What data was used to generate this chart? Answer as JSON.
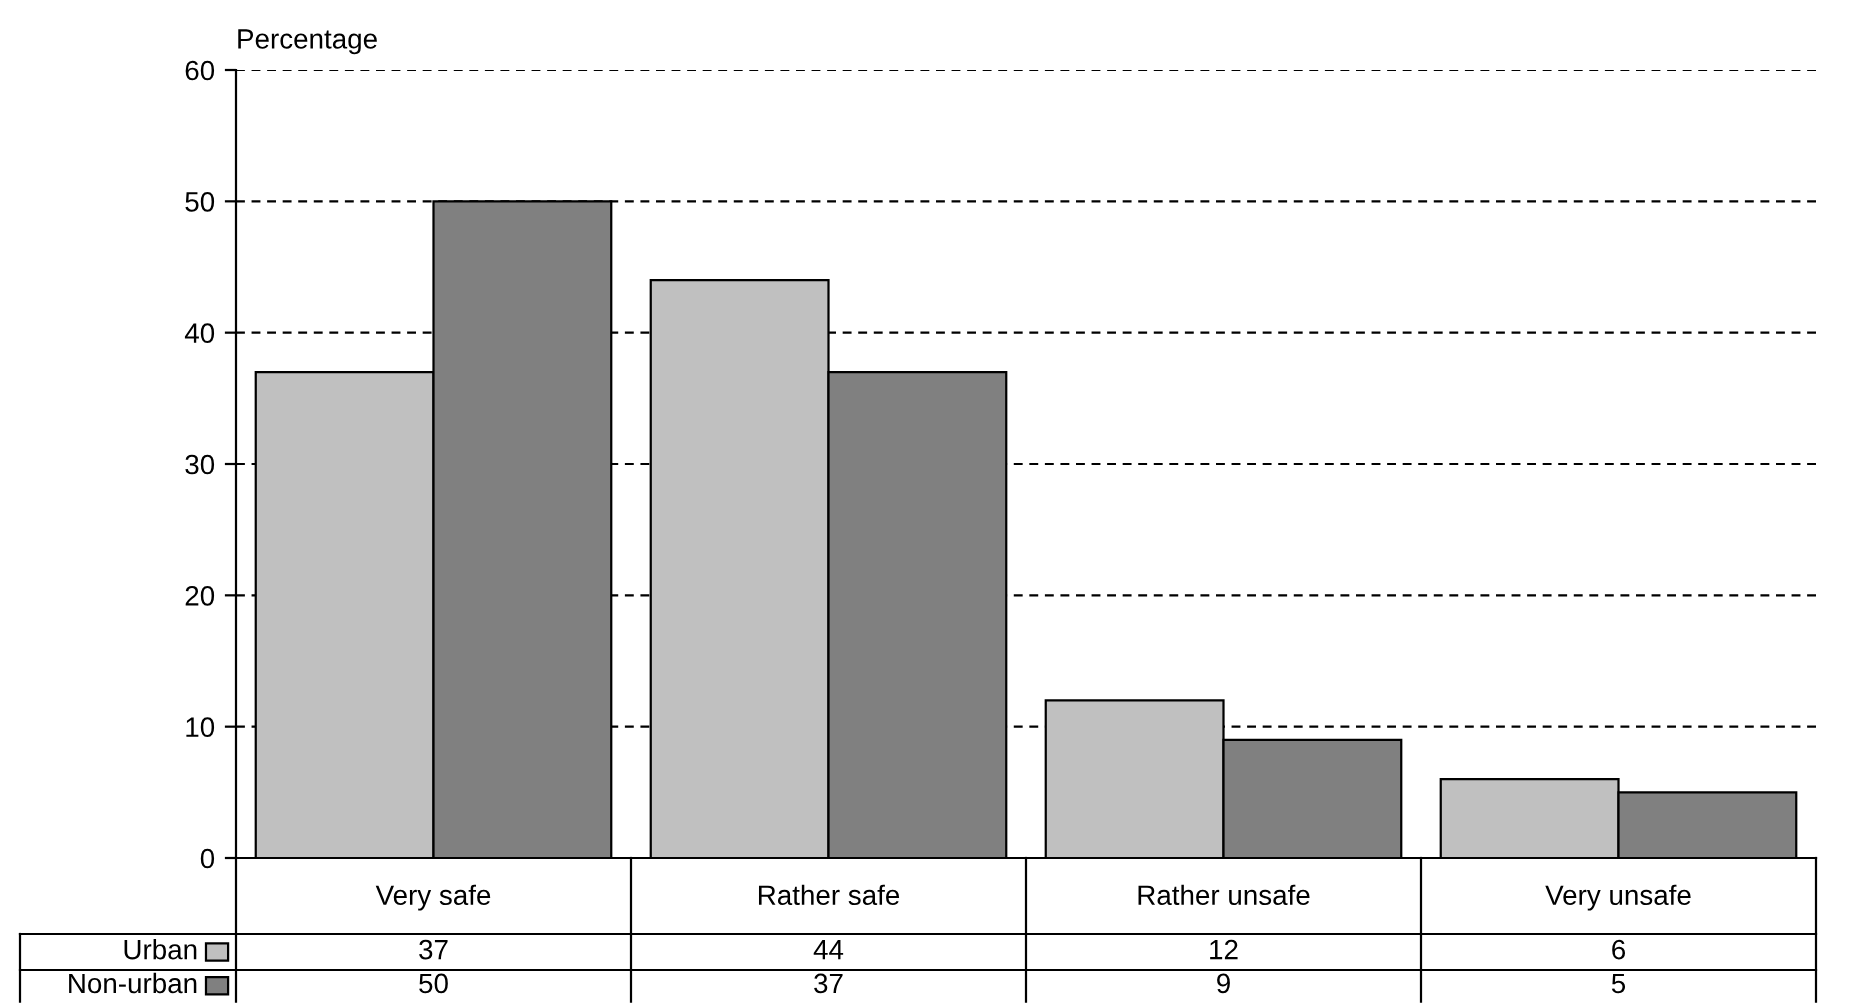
{
  "chart_data": {
    "type": "bar",
    "ylabel": "Percentage",
    "categories": [
      "Very safe",
      "Rather safe",
      "Rather unsafe",
      "Very unsafe"
    ],
    "series": [
      {
        "name": "Urban",
        "color": "#c0c0c0",
        "values": [
          37,
          44,
          12,
          6
        ]
      },
      {
        "name": "Non-urban",
        "color": "#808080",
        "values": [
          50,
          37,
          9,
          5
        ]
      }
    ],
    "ylim": [
      0,
      60
    ],
    "yticks": [
      0,
      10,
      20,
      30,
      40,
      50,
      60
    ],
    "grid": "y",
    "line_style": "dashed",
    "data_labels": true,
    "legend": "bottom left"
  }
}
